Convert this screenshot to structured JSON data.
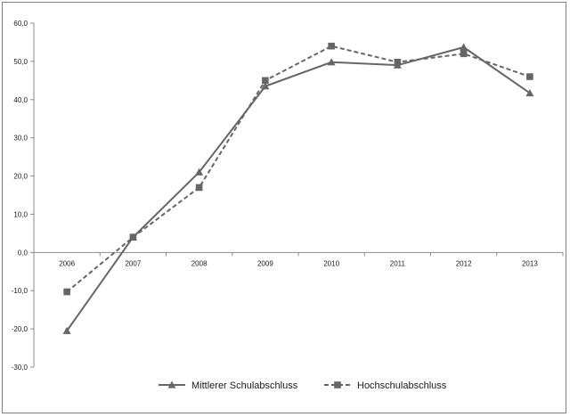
{
  "chart_data": {
    "type": "line",
    "categories": [
      "2006",
      "2007",
      "2008",
      "2009",
      "2010",
      "2011",
      "2012",
      "2013"
    ],
    "series": [
      {
        "name": "Mittlerer Schulabschluss",
        "values": [
          -20.5,
          4.0,
          21.0,
          43.5,
          49.8,
          49.0,
          53.7,
          41.7
        ],
        "marker": "triangle",
        "line_style": "solid",
        "color": "#666666"
      },
      {
        "name": "Hochschulabschluss",
        "values": [
          -10.3,
          4.0,
          17.0,
          45.0,
          54.0,
          49.8,
          52.0,
          46.0
        ],
        "marker": "square",
        "line_style": "dashed",
        "color": "#666666"
      }
    ],
    "ylim": [
      -30,
      60
    ],
    "y_ticks": [
      -30,
      -20,
      -10,
      0,
      10,
      20,
      30,
      40,
      50,
      60
    ],
    "y_tick_labels": [
      "-30,0",
      "-20,0",
      "-10,0",
      "0,0",
      "10,0",
      "20,0",
      "30,0",
      "40,0",
      "50,0",
      "60,0"
    ],
    "x_axis_position": "at zero",
    "grid": false,
    "legend_position": "bottom-center",
    "title": "",
    "xlabel": "",
    "ylabel": ""
  }
}
